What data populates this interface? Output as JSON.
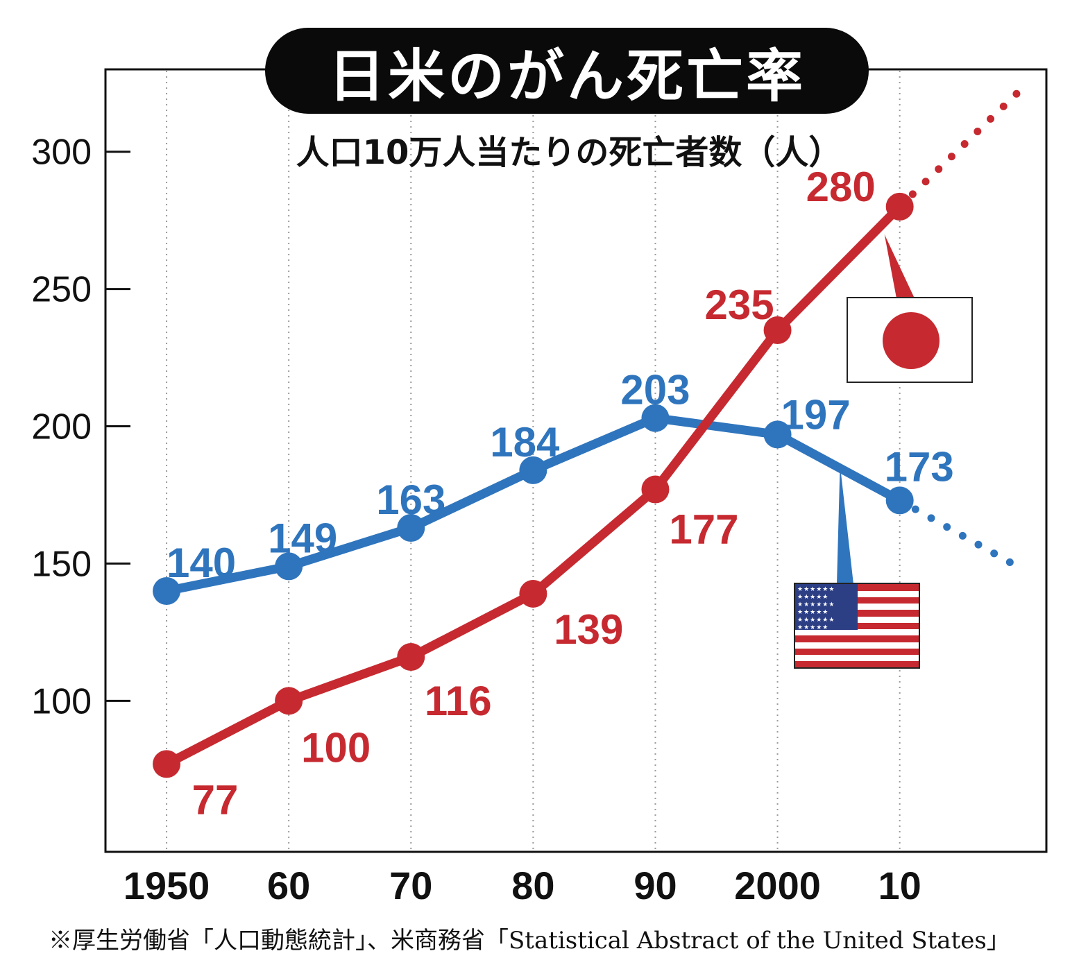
{
  "title": "日米のがん死亡率",
  "subtitle": "人口10万人当たりの死亡者数（人）",
  "source": "※厚生労働省「人口動態統計」、米商務省「Statistical Abstract of the United States」",
  "colors": {
    "japan": "#c62a30",
    "usa": "#2f75bd",
    "axis": "#111111",
    "grid": "#9a9a9a",
    "us_canton": "#2c3f85",
    "us_white": "#ffffff"
  },
  "flags": {
    "japan": {
      "icon": "japan-flag-icon"
    },
    "usa": {
      "icon": "usa-flag-icon",
      "stars_text": "★★★★★★ ★★★★★ ★★★★★★ ★★★★★ ★★★★★★ ★★★★★ ★★★★★★"
    }
  },
  "chart_data": {
    "type": "line",
    "x": [
      1950,
      1960,
      1970,
      1980,
      1990,
      2000,
      2010
    ],
    "x_tick_labels": [
      "1950",
      "60",
      "70",
      "80",
      "90",
      "2000",
      "10"
    ],
    "xlim": [
      1945,
      2022
    ],
    "ylim": [
      45,
      330
    ],
    "y_ticks": [
      100,
      150,
      200,
      250,
      300
    ],
    "grid": "vertical dotted at each x tick",
    "series": [
      {
        "key": "usa",
        "values": [
          140,
          149,
          163,
          184,
          203,
          197,
          173
        ],
        "trend_end": {
          "x": 2020,
          "y": 148
        }
      },
      {
        "key": "japan",
        "values": [
          77,
          100,
          116,
          139,
          177,
          235,
          280
        ],
        "trend_end": {
          "x": 2020,
          "y": 323
        }
      }
    ],
    "data_labels": {
      "usa": [
        "140",
        "149",
        "163",
        "184",
        "203",
        "197",
        "173"
      ],
      "japan": [
        "77",
        "100",
        "116",
        "139",
        "177",
        "235",
        "280"
      ]
    }
  }
}
